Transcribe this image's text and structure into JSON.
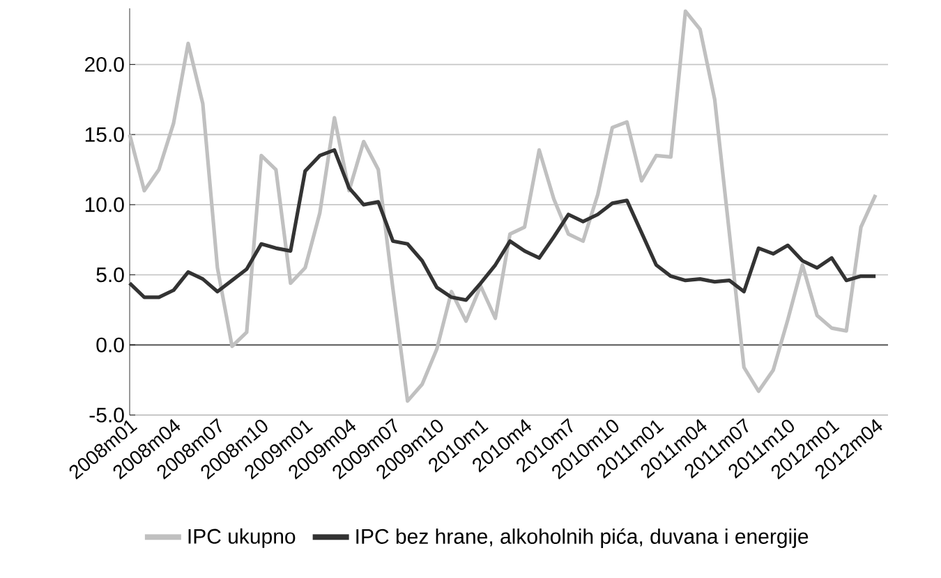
{
  "chart_data": {
    "type": "line",
    "categories": [
      "2008m01",
      null,
      null,
      "2008m04",
      null,
      null,
      "2008m07",
      null,
      null,
      "2008m10",
      null,
      null,
      "2009m01",
      null,
      null,
      "2009m04",
      null,
      null,
      "2009m07",
      null,
      null,
      "2009m10",
      null,
      null,
      "2010m1",
      null,
      null,
      "2010m4",
      null,
      null,
      "2010m7",
      null,
      null,
      "2010m10",
      null,
      null,
      "2011m01",
      null,
      null,
      "2011m04",
      null,
      null,
      "2011m07",
      null,
      null,
      "2011m10",
      null,
      null,
      "2012m01",
      null,
      null,
      "2012m04"
    ],
    "series": [
      {
        "name": "IPC ukupno",
        "color": "#c0c0c0",
        "values": [
          15.0,
          11.0,
          12.5,
          15.8,
          21.5,
          17.2,
          5.5,
          -0.1,
          0.9,
          13.5,
          12.5,
          4.4,
          5.5,
          9.4,
          16.2,
          11.0,
          14.5,
          12.5,
          4.0,
          -4.0,
          -2.8,
          -0.3,
          3.8,
          1.7,
          4.2,
          1.9,
          7.9,
          8.4,
          13.9,
          10.4,
          7.9,
          7.4,
          10.7,
          15.5,
          15.9,
          11.7,
          13.5,
          13.4,
          23.8,
          22.5,
          17.5,
          8.0,
          -1.6,
          -3.3,
          -1.8,
          1.8,
          5.7,
          2.1,
          1.2,
          1.0,
          8.4,
          10.7
        ]
      },
      {
        "name": "IPC bez hrane,  alkoholnih pića, duvana i energije",
        "color": "#333333",
        "values": [
          4.4,
          3.4,
          3.4,
          3.9,
          5.2,
          4.7,
          3.8,
          4.6,
          5.4,
          7.2,
          6.9,
          6.7,
          12.4,
          13.5,
          13.9,
          11.2,
          10.0,
          10.2,
          7.4,
          7.2,
          6.0,
          4.1,
          3.4,
          3.2,
          4.4,
          5.7,
          7.4,
          6.7,
          6.2,
          7.7,
          9.3,
          8.8,
          9.3,
          10.1,
          10.3,
          8.0,
          5.7,
          4.9,
          4.6,
          4.7,
          4.5,
          4.6,
          3.8,
          6.9,
          6.5,
          7.1,
          6.0,
          5.5,
          6.2,
          4.6,
          4.9,
          4.9
        ]
      }
    ],
    "ylim": [
      -5,
      24
    ],
    "yticks": [
      {
        "value": -5,
        "label": "-5.0"
      },
      {
        "value": 0,
        "label": "0.0"
      },
      {
        "value": 5,
        "label": "5.0"
      },
      {
        "value": 10,
        "label": "10.0"
      },
      {
        "value": 15,
        "label": "15.0"
      },
      {
        "value": 20,
        "label": "20.0"
      }
    ],
    "grid": "y",
    "legend": "bottom",
    "marker": "none",
    "line_style": "solid"
  }
}
